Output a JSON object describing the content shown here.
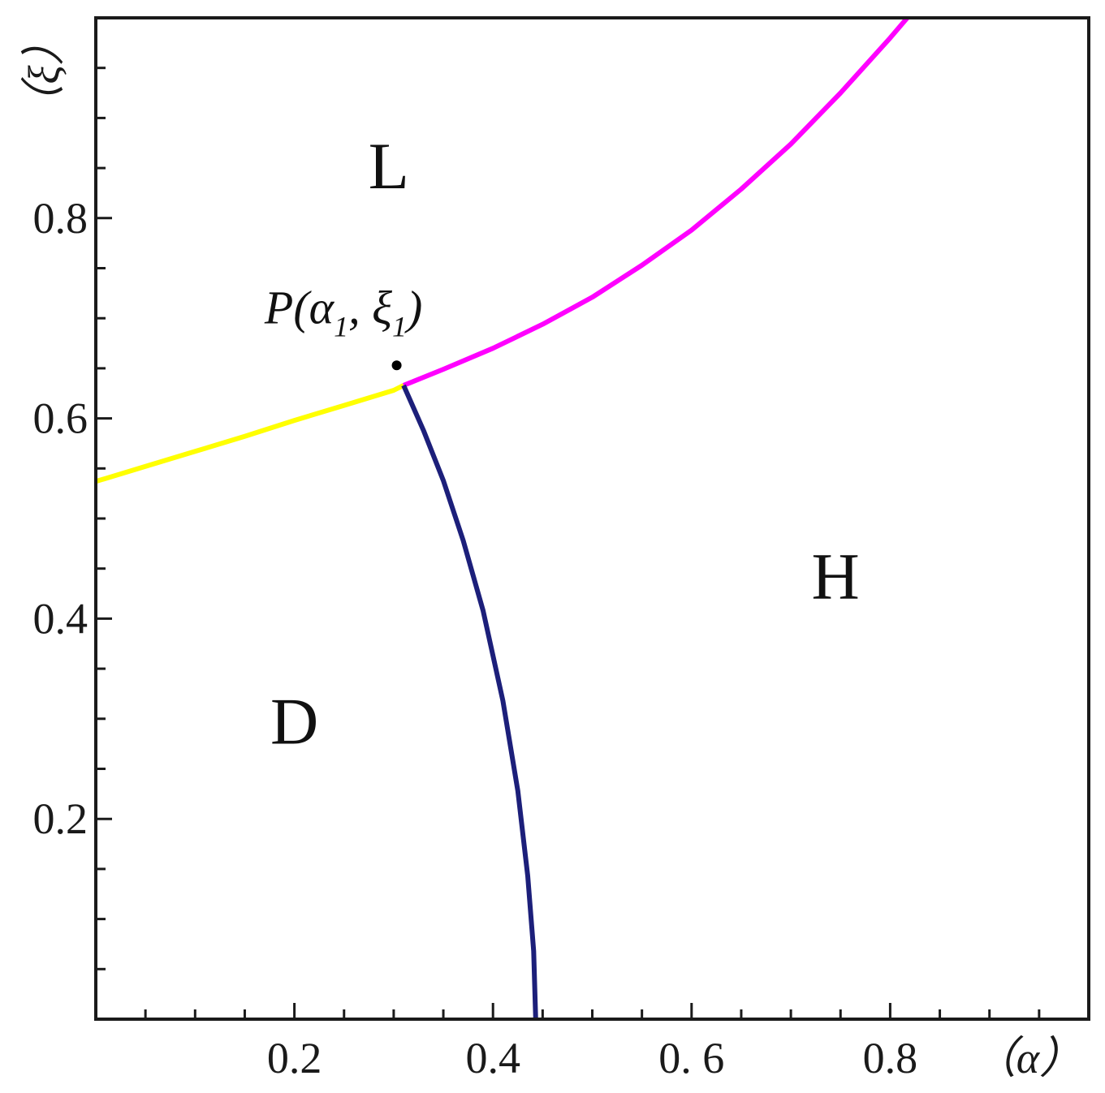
{
  "chart_data": {
    "type": "line",
    "title": "",
    "xlabel": "α",
    "ylabel": "ξ",
    "xlabel_display": "（α）",
    "ylabel_display": "（ξ）",
    "xlim": [
      0,
      1.0
    ],
    "ylim": [
      0,
      1.0
    ],
    "x_ticks": [
      {
        "value": 0.2,
        "label": "0.2"
      },
      {
        "value": 0.4,
        "label": "0.4"
      },
      {
        "value": 0.6,
        "label": "0. 6"
      },
      {
        "value": 0.8,
        "label": "0.8"
      }
    ],
    "y_ticks": [
      {
        "value": 0.2,
        "label": "0.2"
      },
      {
        "value": 0.4,
        "label": "0.4"
      },
      {
        "value": 0.6,
        "label": "0.6"
      },
      {
        "value": 0.8,
        "label": "0.8"
      }
    ],
    "minor_step": 0.05,
    "grid": false,
    "series": [
      {
        "color": "#ffff00",
        "x": [
          0.0,
          0.05,
          0.1,
          0.15,
          0.2,
          0.25,
          0.3,
          0.31
        ],
        "y": [
          0.537,
          0.552,
          0.567,
          0.582,
          0.598,
          0.613,
          0.628,
          0.633
        ]
      },
      {
        "color": "#ff00ff",
        "x": [
          0.31,
          0.35,
          0.4,
          0.45,
          0.5,
          0.55,
          0.6,
          0.65,
          0.7,
          0.75,
          0.8,
          0.85,
          0.866
        ],
        "y": [
          0.633,
          0.649,
          0.67,
          0.694,
          0.721,
          0.753,
          0.788,
          0.829,
          0.874,
          0.925,
          0.98,
          1.038,
          1.058
        ]
      },
      {
        "color": "#1c1f7a",
        "x": [
          0.31,
          0.33,
          0.35,
          0.37,
          0.39,
          0.41,
          0.425,
          0.435,
          0.441,
          0.443
        ],
        "y": [
          0.633,
          0.588,
          0.538,
          0.478,
          0.408,
          0.318,
          0.228,
          0.143,
          0.068,
          0.0
        ]
      }
    ],
    "points": [
      {
        "x": 0.303,
        "y": 0.653
      }
    ],
    "annotations": [
      {
        "main": "P(α",
        "sub1": "1",
        "mid": ", ξ",
        "sub2": "1",
        "close": ")",
        "x": 0.17,
        "y": 0.695
      }
    ],
    "regions": [
      {
        "label": "L",
        "x": 0.295,
        "y": 0.83
      },
      {
        "label": "H",
        "x": 0.745,
        "y": 0.42
      },
      {
        "label": "D",
        "x": 0.2,
        "y": 0.275
      }
    ]
  }
}
